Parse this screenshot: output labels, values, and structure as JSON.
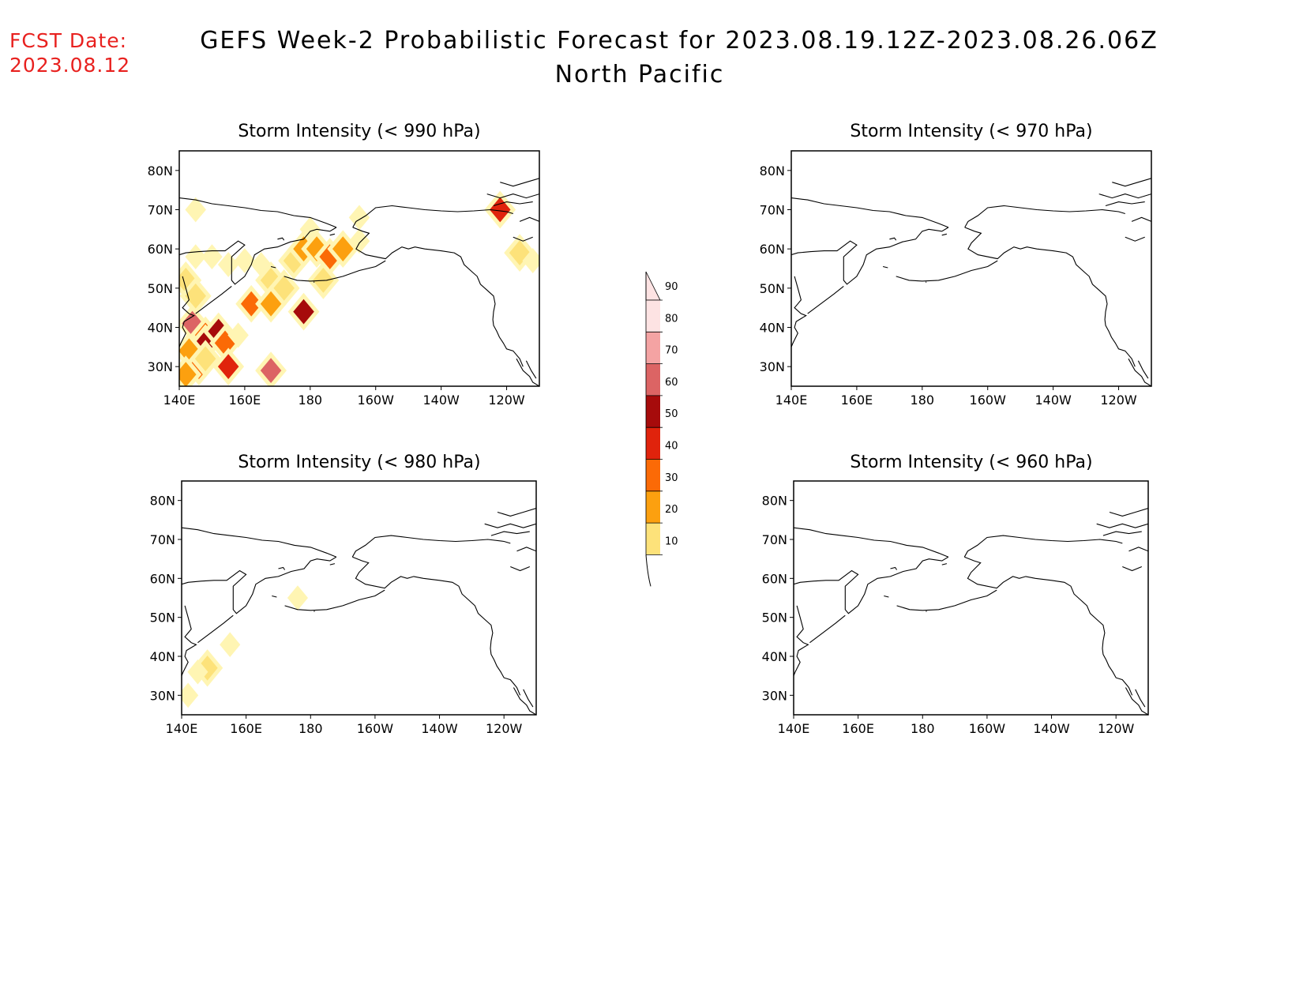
{
  "header": {
    "fcst_label": "FCST Date:",
    "fcst_date": "2023.08.12",
    "title_line1": "GEFS Week-2 Probabilistic Forecast for 2023.08.19.12Z-2023.08.26.06Z",
    "title_line2": "North Pacific"
  },
  "colors": {
    "fcst_text": "#e8211f",
    "levels": [
      "#fff5b3",
      "#fde27a",
      "#fca00f",
      "#fb6a06",
      "#e0230c",
      "#a60b0b",
      "#dc6464",
      "#f4a3a3",
      "#fde3e3"
    ]
  },
  "chart_data": {
    "type": "heatmap",
    "map_extent": {
      "lon": [
        140,
        250
      ],
      "lat": [
        25,
        85
      ]
    },
    "lon_ticks": [
      "140E",
      "160E",
      "180",
      "160W",
      "140W",
      "120W"
    ],
    "lat_ticks": [
      "30N",
      "40N",
      "50N",
      "60N",
      "70N",
      "80N"
    ],
    "colorbar": {
      "levels": [
        10,
        20,
        30,
        40,
        50,
        60,
        70,
        80,
        90
      ]
    },
    "panels": [
      {
        "title": "Storm Intensity (< 990 hPa)",
        "cells": [
          {
            "lon": 145,
            "lat": 70,
            "v": 10
          },
          {
            "lon": 145,
            "lat": 58,
            "v": 15
          },
          {
            "lon": 150,
            "lat": 58,
            "v": 15
          },
          {
            "lon": 155,
            "lat": 56,
            "v": 15
          },
          {
            "lon": 142,
            "lat": 52,
            "v": 20
          },
          {
            "lon": 145,
            "lat": 48,
            "v": 20
          },
          {
            "lon": 160,
            "lat": 57,
            "v": 15
          },
          {
            "lon": 165,
            "lat": 56,
            "v": 15
          },
          {
            "lon": 168,
            "lat": 52,
            "v": 20
          },
          {
            "lon": 172,
            "lat": 50,
            "v": 20
          },
          {
            "lon": 175,
            "lat": 57,
            "v": 20
          },
          {
            "lon": 178,
            "lat": 60,
            "v": 35
          },
          {
            "lon": 182,
            "lat": 60,
            "v": 35
          },
          {
            "lon": 186,
            "lat": 58,
            "v": 40
          },
          {
            "lon": 190,
            "lat": 60,
            "v": 35
          },
          {
            "lon": 184,
            "lat": 52,
            "v": 20
          },
          {
            "lon": 180,
            "lat": 65,
            "v": 15
          },
          {
            "lon": 195,
            "lat": 68,
            "v": 15
          },
          {
            "lon": 195,
            "lat": 62,
            "v": 10
          },
          {
            "lon": 162,
            "lat": 46,
            "v": 40
          },
          {
            "lon": 168,
            "lat": 46,
            "v": 30
          },
          {
            "lon": 178,
            "lat": 44,
            "v": 60
          },
          {
            "lon": 144,
            "lat": 41,
            "v": 75
          },
          {
            "lon": 148,
            "lat": 38,
            "v": 45
          },
          {
            "lon": 148,
            "lat": 36,
            "v": 65
          },
          {
            "lon": 152,
            "lat": 39,
            "v": 60
          },
          {
            "lon": 154,
            "lat": 36,
            "v": 40
          },
          {
            "lon": 143,
            "lat": 34,
            "v": 30
          },
          {
            "lon": 146,
            "lat": 30,
            "v": 40
          },
          {
            "lon": 142,
            "lat": 28,
            "v": 35
          },
          {
            "lon": 155,
            "lat": 30,
            "v": 55
          },
          {
            "lon": 168,
            "lat": 29,
            "v": 70
          },
          {
            "lon": 148,
            "lat": 32,
            "v": 20
          },
          {
            "lon": 158,
            "lat": 38,
            "v": 15
          },
          {
            "lon": 238,
            "lat": 70,
            "v": 55
          },
          {
            "lon": 244,
            "lat": 59,
            "v": 20
          },
          {
            "lon": 248,
            "lat": 57,
            "v": 15
          }
        ]
      },
      {
        "title": "Storm Intensity (< 970 hPa)",
        "cells": []
      },
      {
        "title": "Storm Intensity (< 980 hPa)",
        "cells": [
          {
            "lon": 176,
            "lat": 55,
            "v": 15
          },
          {
            "lon": 155,
            "lat": 43,
            "v": 15
          },
          {
            "lon": 148,
            "lat": 37,
            "v": 20
          },
          {
            "lon": 145,
            "lat": 36,
            "v": 15
          },
          {
            "lon": 142,
            "lat": 30,
            "v": 15
          }
        ]
      },
      {
        "title": "Storm Intensity (< 960 hPa)",
        "cells": []
      }
    ]
  }
}
